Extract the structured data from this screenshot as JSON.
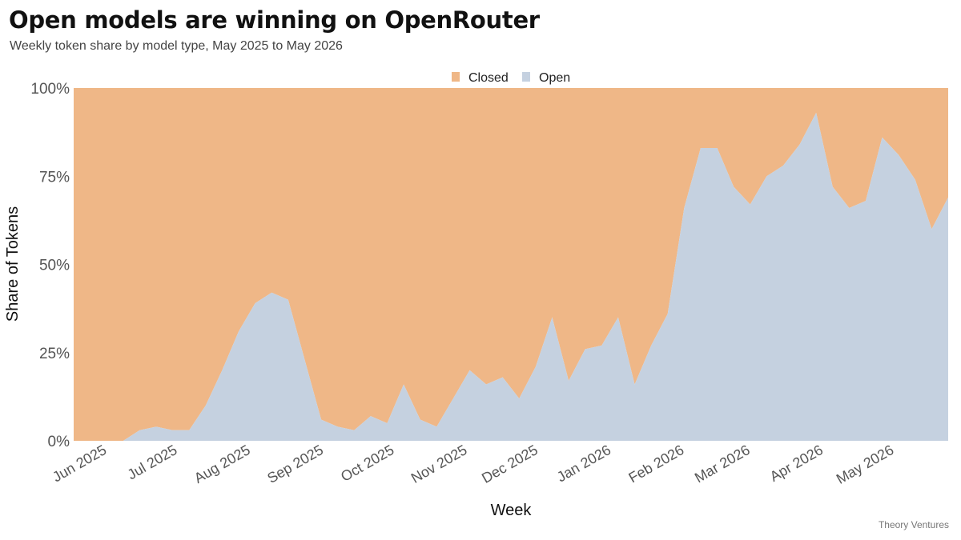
{
  "title": "Open models are winning on OpenRouter",
  "subtitle": "Weekly token share by model type, May 2025 to May 2026",
  "source": "Theory Ventures",
  "colors": {
    "closed": "#EFB787",
    "open": "#C5D1E0",
    "axis_text": "#555555",
    "label": "#111111"
  },
  "chart_data": {
    "type": "area",
    "stacked": true,
    "normalized_percent": true,
    "xlabel": "Week",
    "ylabel": "Share of Tokens",
    "ylim": [
      0,
      100
    ],
    "yticks": [
      0,
      25,
      50,
      75,
      100
    ],
    "ytick_labels": [
      "0%",
      "25%",
      "50%",
      "75%",
      "100%"
    ],
    "xticks": [
      {
        "date": "2025-06-01",
        "label": "Jun 2025"
      },
      {
        "date": "2025-07-01",
        "label": "Jul 2025"
      },
      {
        "date": "2025-08-01",
        "label": "Aug 2025"
      },
      {
        "date": "2025-09-01",
        "label": "Sep 2025"
      },
      {
        "date": "2025-10-01",
        "label": "Oct 2025"
      },
      {
        "date": "2025-11-01",
        "label": "Nov 2025"
      },
      {
        "date": "2025-12-01",
        "label": "Dec 2025"
      },
      {
        "date": "2026-01-01",
        "label": "Jan 2026"
      },
      {
        "date": "2026-02-01",
        "label": "Feb 2026"
      },
      {
        "date": "2026-03-01",
        "label": "Mar 2026"
      },
      {
        "date": "2026-04-01",
        "label": "Apr 2026"
      },
      {
        "date": "2026-05-01",
        "label": "May 2026"
      }
    ],
    "legend": {
      "placement": "top-center",
      "entries": [
        "Closed",
        "Open"
      ]
    },
    "x": [
      "2025-05-19",
      "2025-05-26",
      "2025-06-02",
      "2025-06-09",
      "2025-06-16",
      "2025-06-23",
      "2025-06-30",
      "2025-07-07",
      "2025-07-14",
      "2025-07-21",
      "2025-07-28",
      "2025-08-04",
      "2025-08-11",
      "2025-08-18",
      "2025-08-25",
      "2025-09-01",
      "2025-09-08",
      "2025-09-15",
      "2025-09-22",
      "2025-09-29",
      "2025-10-06",
      "2025-10-13",
      "2025-10-20",
      "2025-10-27",
      "2025-11-03",
      "2025-11-10",
      "2025-11-17",
      "2025-11-24",
      "2025-12-01",
      "2025-12-08",
      "2025-12-15",
      "2025-12-22",
      "2025-12-29",
      "2026-01-05",
      "2026-01-12",
      "2026-01-19",
      "2026-01-26",
      "2026-02-02",
      "2026-02-09",
      "2026-02-16",
      "2026-02-23",
      "2026-03-02",
      "2026-03-09",
      "2026-03-16",
      "2026-03-23",
      "2026-03-30",
      "2026-04-06",
      "2026-04-13",
      "2026-04-20",
      "2026-04-27",
      "2026-05-04",
      "2026-05-11",
      "2026-05-18",
      "2026-05-25"
    ],
    "series": [
      {
        "name": "Open",
        "values": [
          0,
          0,
          0,
          0,
          3,
          4,
          3,
          3,
          10,
          20,
          31,
          39,
          42,
          40,
          23,
          6,
          4,
          3,
          7,
          5,
          16,
          6,
          4,
          12,
          20,
          16,
          18,
          12,
          21,
          35,
          17,
          26,
          27,
          35,
          16,
          27,
          36,
          66,
          83,
          83,
          72,
          67,
          75,
          78,
          84,
          93,
          72,
          66,
          68,
          86,
          81,
          74,
          60,
          69
        ]
      },
      {
        "name": "Closed",
        "values": [
          100,
          100,
          100,
          100,
          97,
          96,
          97,
          97,
          90,
          80,
          69,
          61,
          58,
          60,
          77,
          94,
          96,
          97,
          93,
          95,
          84,
          94,
          96,
          88,
          80,
          84,
          82,
          88,
          79,
          65,
          83,
          74,
          73,
          65,
          84,
          73,
          64,
          34,
          17,
          17,
          28,
          33,
          25,
          22,
          16,
          7,
          28,
          34,
          32,
          14,
          19,
          26,
          40,
          31
        ]
      }
    ]
  }
}
